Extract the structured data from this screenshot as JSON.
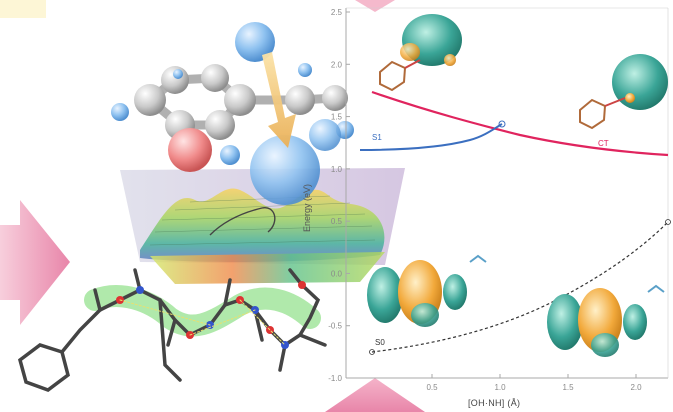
{
  "figure": {
    "x_axis_label": "[OH·NH] (Å)",
    "y_axis_label": "Energy (eV)",
    "y_ticks": [
      "2.5",
      "2.0",
      "1.5",
      "1.0",
      "0.5",
      "0.0",
      "-0.5",
      "-1.0"
    ],
    "x_ticks": [
      "0.5",
      "1.0",
      "1.5",
      "2.0"
    ],
    "curve_labels": {
      "upper": "CT",
      "middle": "S1",
      "lower": "S0"
    },
    "colors": {
      "upper_curve": "#e0245e",
      "middle_curve": "#3b6fc0",
      "lower_curve": "#333333",
      "orbital_teal": "#3aa597",
      "orbital_orange": "#f2a93b",
      "arrow_pink": "#e4709a",
      "arrow_yellow": "#f3c26a"
    }
  }
}
